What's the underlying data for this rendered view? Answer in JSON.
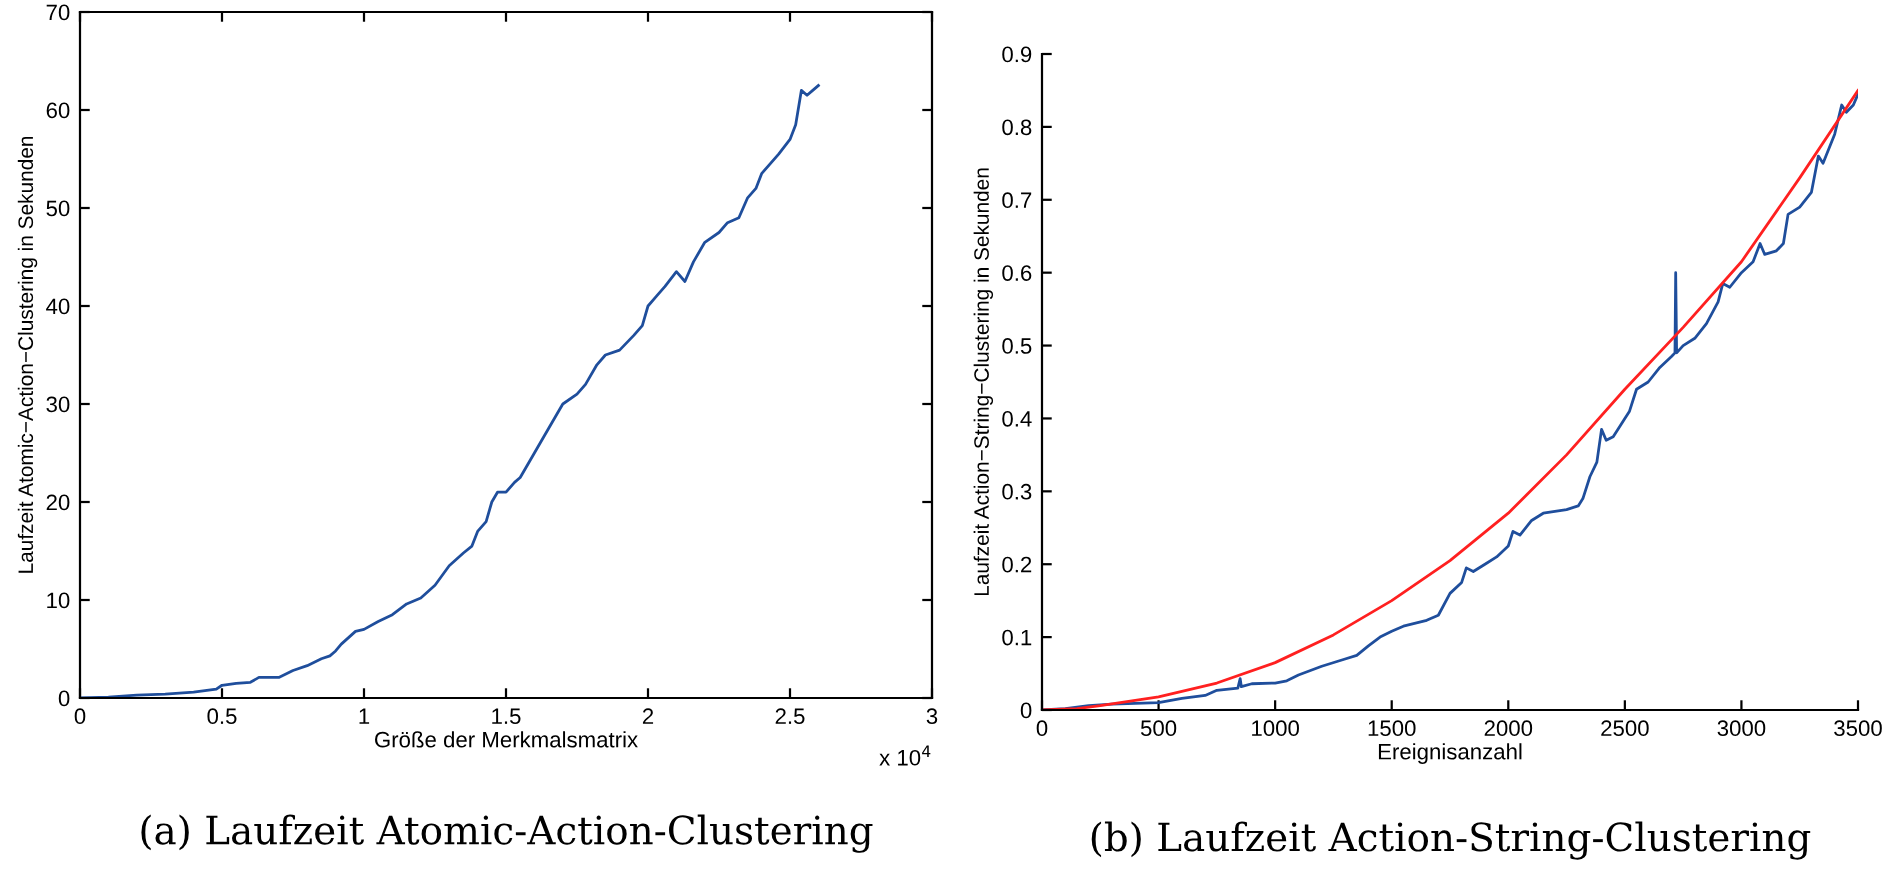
{
  "chart_data": [
    {
      "type": "line",
      "xlabel": "Größe der Merkmalsmatrix",
      "ylabel": "Laufzeit Atomic−Action−Clustering in Sekunden",
      "xlim": [
        0,
        3
      ],
      "xticks": [
        0,
        0.5,
        1,
        1.5,
        2,
        2.5,
        3
      ],
      "ylim": [
        0,
        70
      ],
      "yticks": [
        0,
        10,
        20,
        30,
        40,
        50,
        60,
        70
      ],
      "annotations": [
        "x 10$^{4}$",
        "(a) Laufzeit Atomic-Action-Clustering"
      ],
      "series": [
        {
          "color": "#1f4e9c",
          "x": [
            0,
            0.1,
            0.2,
            0.3,
            0.4,
            0.48,
            0.5,
            0.55,
            0.6,
            0.63,
            0.7,
            0.75,
            0.8,
            0.85,
            0.88,
            0.9,
            0.92,
            0.97,
            1.0,
            1.05,
            1.1,
            1.15,
            1.2,
            1.25,
            1.3,
            1.35,
            1.38,
            1.4,
            1.43,
            1.45,
            1.47,
            1.5,
            1.53,
            1.55,
            1.6,
            1.63,
            1.68,
            1.7,
            1.75,
            1.78,
            1.82,
            1.85,
            1.9,
            1.95,
            1.98,
            2.0,
            2.03,
            2.06,
            2.1,
            2.13,
            2.16,
            2.2,
            2.25,
            2.28,
            2.32,
            2.35,
            2.38,
            2.4,
            2.43,
            2.46,
            2.5,
            2.52,
            2.54,
            2.56,
            2.58,
            2.6
          ],
          "values": [
            0,
            0.1,
            0.3,
            0.4,
            0.6,
            0.9,
            1.3,
            1.5,
            1.6,
            2.1,
            2.1,
            2.8,
            3.3,
            4.0,
            4.3,
            4.8,
            5.5,
            6.8,
            7.0,
            7.8,
            8.5,
            9.6,
            10.2,
            11.5,
            13.5,
            14.8,
            15.5,
            17.0,
            18.0,
            20.0,
            21.0,
            21.0,
            22.0,
            22.5,
            25.0,
            26.5,
            29.0,
            30.0,
            31.0,
            32.0,
            34.0,
            35.0,
            35.5,
            37.0,
            38.0,
            40.0,
            41.0,
            42.0,
            43.5,
            42.5,
            44.5,
            46.5,
            47.5,
            48.5,
            49.0,
            51.0,
            52.0,
            53.5,
            54.5,
            55.5,
            57.0,
            58.5,
            62.0,
            61.5,
            62.0,
            62.5
          ]
        }
      ]
    },
    {
      "type": "line",
      "xlabel": "Ereignisanzahl",
      "ylabel": "Laufzeit Action−String−Clustering in Sekunden",
      "xlim": [
        0,
        3500
      ],
      "xticks": [
        0,
        500,
        1000,
        1500,
        2000,
        2500,
        3000,
        3500
      ],
      "ylim": [
        0,
        0.9
      ],
      "yticks": [
        0,
        0.1,
        0.2,
        0.3,
        0.4,
        0.5,
        0.6,
        0.7,
        0.8,
        0.9
      ],
      "annotations": [
        "(b) Laufzeit Action-String-Clustering"
      ],
      "series": [
        {
          "color": "#1f4e9c",
          "x": [
            0,
            100,
            200,
            300,
            400,
            500,
            600,
            700,
            750,
            840,
            850,
            855,
            900,
            1000,
            1050,
            1100,
            1200,
            1300,
            1350,
            1400,
            1450,
            1500,
            1550,
            1650,
            1700,
            1750,
            1800,
            1820,
            1850,
            1900,
            1950,
            2000,
            2020,
            2050,
            2100,
            2150,
            2250,
            2300,
            2320,
            2350,
            2380,
            2400,
            2420,
            2450,
            2500,
            2520,
            2550,
            2600,
            2650,
            2700,
            2715,
            2718,
            2722,
            2750,
            2800,
            2850,
            2900,
            2920,
            2950,
            3000,
            3050,
            3080,
            3100,
            3150,
            3180,
            3200,
            3250,
            3300,
            3330,
            3350,
            3400,
            3430,
            3450,
            3480,
            3500
          ],
          "values": [
            0,
            0.002,
            0.006,
            0.008,
            0.009,
            0.01,
            0.016,
            0.02,
            0.027,
            0.03,
            0.043,
            0.032,
            0.036,
            0.037,
            0.04,
            0.048,
            0.06,
            0.07,
            0.075,
            0.088,
            0.1,
            0.108,
            0.115,
            0.123,
            0.13,
            0.16,
            0.175,
            0.195,
            0.19,
            0.2,
            0.21,
            0.225,
            0.245,
            0.24,
            0.26,
            0.27,
            0.275,
            0.28,
            0.29,
            0.32,
            0.34,
            0.385,
            0.37,
            0.375,
            0.4,
            0.41,
            0.44,
            0.45,
            0.47,
            0.485,
            0.49,
            0.6,
            0.49,
            0.5,
            0.51,
            0.53,
            0.56,
            0.585,
            0.58,
            0.6,
            0.615,
            0.64,
            0.625,
            0.63,
            0.64,
            0.68,
            0.69,
            0.71,
            0.76,
            0.75,
            0.79,
            0.83,
            0.82,
            0.83,
            0.845
          ]
        },
        {
          "color": "#ff2020",
          "x": [
            0,
            150,
            250,
            500,
            750,
            1000,
            1250,
            1500,
            1750,
            2000,
            2250,
            2500,
            2750,
            3000,
            3250,
            3500
          ],
          "values": [
            0,
            0.002,
            0.006,
            0.018,
            0.037,
            0.065,
            0.103,
            0.15,
            0.205,
            0.27,
            0.35,
            0.44,
            0.525,
            0.615,
            0.73,
            0.85
          ]
        }
      ]
    }
  ]
}
